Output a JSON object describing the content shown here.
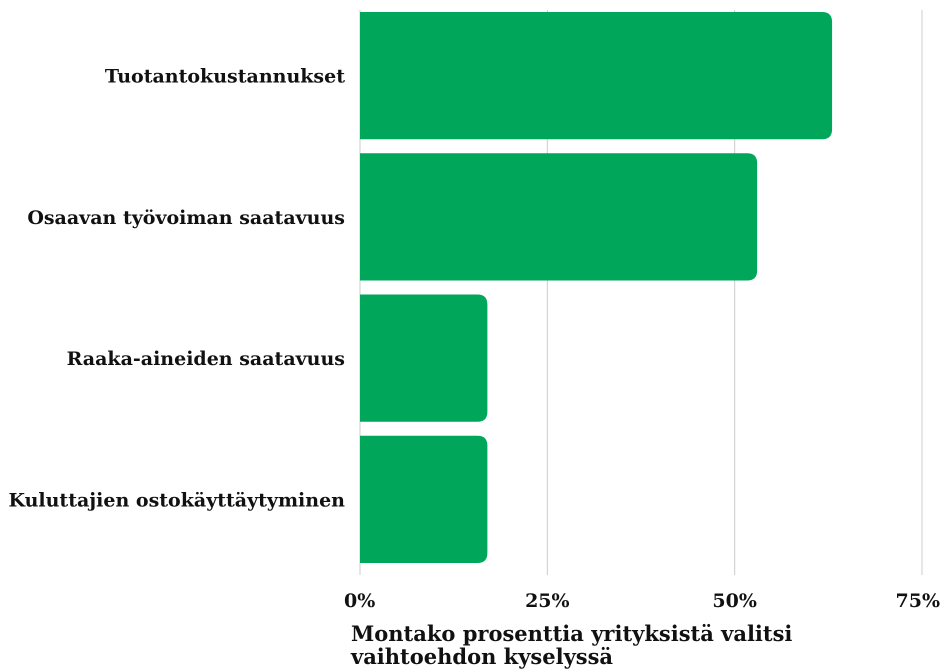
{
  "chart_data": {
    "type": "bar",
    "orientation": "horizontal",
    "categories": [
      "Tuotantokustannukset",
      "Osaavan työvoiman saatavuus",
      "Raaka-aineiden saatavuus",
      "Kuluttajien ostokäyttäytyminen"
    ],
    "values": [
      63,
      53,
      17,
      17
    ],
    "xlabel": "Montako prosenttia yrityksistä valitsi vaihtoehdon kyselyssä",
    "xlim": [
      0,
      75
    ],
    "xticks": [
      0,
      25,
      50,
      75
    ],
    "xtick_labels": [
      "0%",
      "25%",
      "50%",
      "75%"
    ],
    "grid": true,
    "bar_color": "#00a65a",
    "grid_color": "#cccccc"
  }
}
